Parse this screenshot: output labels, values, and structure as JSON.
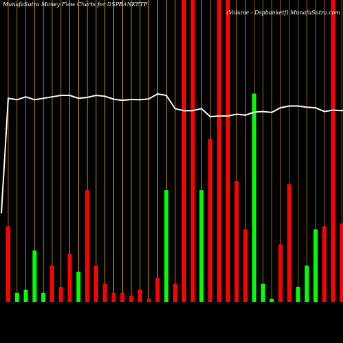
{
  "chart_data": {
    "type": "bar",
    "title": "MunafaSutra  Money Flow  Charts for DSPBANKETF",
    "subtitle": "(Volume -  Dspbanketf) MunafaSutra.com",
    "colors": {
      "background": "#000000",
      "up": "#00ff00",
      "down": "#ff0000",
      "gridline": "#b8860b",
      "price_line": "#ffffff"
    },
    "ylim": [
      0,
      100
    ],
    "categories": [
      "",
      "",
      "",
      "",
      "",
      "",
      "",
      "",
      "",
      "",
      "",
      "",
      "",
      "",
      "",
      "",
      "",
      "",
      "",
      "",
      "",
      "",
      "",
      "",
      "",
      "",
      "",
      "",
      "",
      "",
      "",
      "",
      "",
      "",
      "",
      "",
      "",
      "",
      "",
      ""
    ],
    "volume": [
      25,
      3,
      4,
      17,
      3,
      12,
      5,
      16,
      10,
      37,
      12,
      6,
      3,
      3,
      2,
      4,
      1,
      8,
      37,
      6,
      100,
      100,
      37,
      54,
      100,
      100,
      40,
      24,
      69,
      6,
      1,
      19,
      39,
      5,
      12,
      24,
      25,
      100,
      26,
      4
    ],
    "direction": [
      "down",
      "up",
      "up",
      "up",
      "up",
      "down",
      "down",
      "down",
      "up",
      "down",
      "down",
      "down",
      "down",
      "down",
      "down",
      "down",
      "down",
      "down",
      "up",
      "down",
      "down",
      "down",
      "up",
      "down",
      "down",
      "down",
      "down",
      "down",
      "up",
      "up",
      "up",
      "down",
      "down",
      "up",
      "up",
      "up",
      "down",
      "down",
      "down",
      "down"
    ],
    "price": [
      69,
      68.5,
      69.5,
      68.5,
      69,
      69.5,
      70,
      70,
      69,
      69.3,
      70,
      69.7,
      68.7,
      68.3,
      68.6,
      68.5,
      68.8,
      70.5,
      70,
      65.5,
      64.8,
      64.8,
      65.5,
      62.8,
      63,
      63,
      63.6,
      63.3,
      64.3,
      64.5,
      64.2,
      65.8,
      66.4,
      66.4,
      66,
      65.8,
      64.5,
      65,
      64.8,
      66
    ],
    "price_start": 30
  }
}
